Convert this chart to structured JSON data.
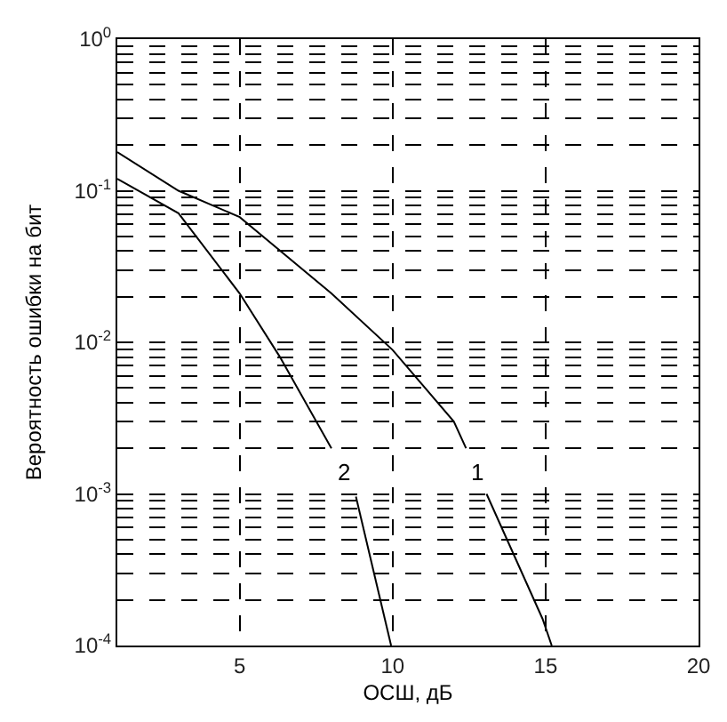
{
  "chart_data": {
    "type": "line",
    "xlabel": "ОСШ, дБ",
    "ylabel": "Вероятность ошибки на бит",
    "log": "y",
    "grid": true,
    "marker": "none",
    "line_style": "solid",
    "xlim": [
      1,
      20
    ],
    "xticks": [
      5,
      10,
      15,
      20
    ],
    "ylim": [
      0.0001,
      1
    ],
    "yticks": [
      {
        "value": 0.0001,
        "label": "10$^{-4}$"
      },
      {
        "value": 0.001,
        "label": "10$^{-3}$"
      },
      {
        "value": 0.01,
        "label": "10$^{-2}$"
      },
      {
        "value": 0.1,
        "label": "10$^{-1}$"
      },
      {
        "value": 1,
        "label": "10$^{0}$"
      }
    ],
    "series": [
      {
        "color": "#000000",
        "x": [
          1,
          3,
          5,
          8,
          10,
          12,
          12.4,
          12.7,
          13.07,
          14.9,
          15.2
        ],
        "values": [
          0.18,
          0.1,
          0.067,
          0.021,
          0.0089,
          0.003,
          0.002,
          null,
          0.001,
          0.00015,
          0.0001
        ]
      },
      {
        "color": "#000000",
        "x": [
          1,
          3,
          5,
          6.3,
          8,
          8.4,
          8.8,
          9.95
        ],
        "values": [
          0.12,
          0.071,
          0.021,
          0.0081,
          0.002,
          null,
          0.00096,
          0.0001
        ]
      }
    ],
    "annotations": [
      {
        "text": "1",
        "x": 12.75,
        "y": 0.0014
      },
      {
        "text": "2",
        "x": 8.4,
        "y": 0.0014
      }
    ]
  }
}
